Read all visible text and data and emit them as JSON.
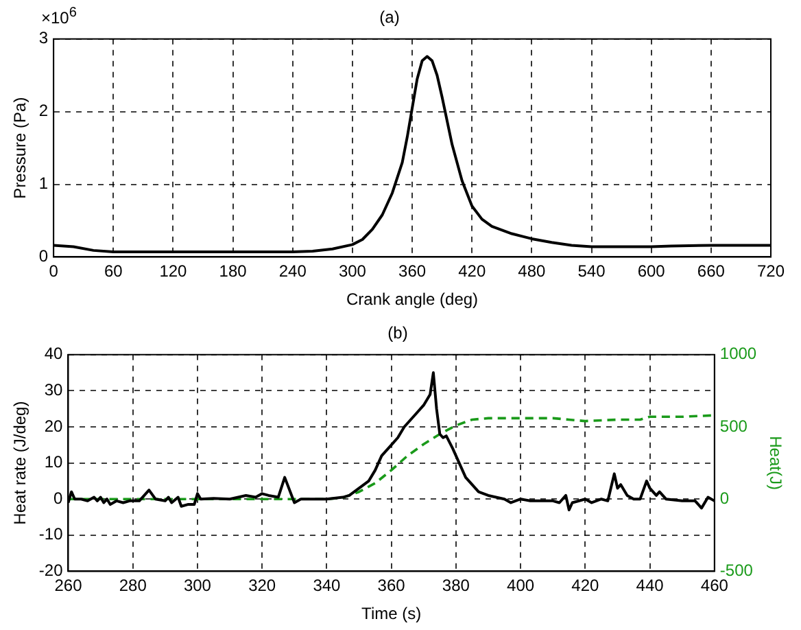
{
  "chart_data": [
    {
      "type": "line",
      "title": "(a)",
      "xlabel": "Crank angle (deg)",
      "ylabel": "Pressure (Pa)",
      "annotations": [
        "×10$^{6}$"
      ],
      "xlim": [
        0,
        720
      ],
      "xticks": [
        0,
        60,
        120,
        180,
        240,
        300,
        360,
        420,
        480,
        540,
        600,
        660,
        720
      ],
      "ylim": [
        0,
        3
      ],
      "yticks": [
        0,
        1,
        2,
        3
      ],
      "grid": true,
      "series": [
        {
          "color": "#000000",
          "x": [
            0,
            20,
            40,
            60,
            120,
            180,
            240,
            260,
            280,
            300,
            310,
            320,
            330,
            340,
            350,
            355,
            360,
            365,
            370,
            375,
            380,
            385,
            390,
            400,
            410,
            420,
            430,
            440,
            460,
            480,
            500,
            520,
            540,
            600,
            620,
            660,
            720
          ],
          "values": [
            0.16,
            0.14,
            0.09,
            0.07,
            0.07,
            0.07,
            0.07,
            0.08,
            0.11,
            0.17,
            0.24,
            0.38,
            0.58,
            0.88,
            1.3,
            1.65,
            2.05,
            2.45,
            2.7,
            2.76,
            2.7,
            2.5,
            2.2,
            1.55,
            1.05,
            0.7,
            0.52,
            0.42,
            0.32,
            0.25,
            0.2,
            0.16,
            0.14,
            0.14,
            0.15,
            0.16,
            0.16
          ]
        }
      ]
    },
    {
      "type": "line",
      "title": "(b)",
      "xlabel": "Time (s)",
      "ylabel": "Heat rate (J/deg)",
      "y2label": "Heat(J)",
      "xlim": [
        260,
        460
      ],
      "xticks": [
        260,
        280,
        300,
        320,
        340,
        360,
        380,
        400,
        420,
        440,
        460
      ],
      "ylim": [
        -20,
        40
      ],
      "yticks": [
        -20,
        -10,
        0,
        10,
        20,
        30,
        40
      ],
      "y2lim": [
        -500,
        1000
      ],
      "y2ticks": [
        -500,
        0,
        500,
        1000
      ],
      "grid": true,
      "series": [
        {
          "color": "#000000",
          "x": [
            260,
            261,
            262,
            264,
            266,
            268,
            269,
            270,
            271,
            272,
            273,
            275,
            277,
            279,
            282,
            285,
            287,
            290,
            291,
            292,
            294,
            295,
            297,
            299,
            300,
            301,
            305,
            310,
            315,
            318,
            320,
            322,
            325,
            327,
            330,
            332,
            340,
            345,
            347,
            350,
            353,
            355,
            357,
            360,
            362,
            364,
            366,
            368,
            370,
            372,
            373,
            374,
            375,
            376,
            377,
            379,
            381,
            383,
            385,
            387,
            390,
            395,
            397,
            400,
            403,
            406,
            410,
            412,
            414,
            415,
            416,
            420,
            422,
            425,
            427,
            429,
            430,
            431,
            433,
            435,
            437,
            439,
            440,
            442,
            443,
            445,
            450,
            454,
            456,
            458,
            460
          ],
          "values": [
            -1,
            2,
            0,
            0,
            -0.5,
            0.5,
            -0.5,
            0.5,
            -1,
            0,
            -1.5,
            -0.5,
            -1,
            -0.5,
            -0.5,
            2.5,
            0,
            -0.5,
            0.5,
            -1,
            0.5,
            -2,
            -1.5,
            -1.5,
            1.5,
            0,
            0.2,
            0,
            1,
            0.5,
            1.5,
            1,
            0.5,
            6,
            -1,
            0,
            0,
            0.5,
            1,
            3,
            5,
            8,
            12,
            15,
            17,
            20,
            22,
            24,
            26,
            29,
            35,
            25,
            18,
            17,
            17.5,
            14,
            10,
            6,
            4,
            2,
            1,
            0,
            -1,
            0,
            -0.5,
            -0.5,
            -0.5,
            -1,
            1,
            -3,
            -1,
            0,
            -1,
            0,
            -0.5,
            7,
            3,
            4,
            1,
            0,
            0,
            5,
            3,
            1,
            2,
            0,
            -0.5,
            -0.5,
            -2.5,
            0.5,
            -0.5
          ]
        },
        {
          "color": "#1a9a1a",
          "axis": "y2",
          "line_style": "dashed",
          "x": [
            260,
            340,
            345,
            350,
            355,
            360,
            365,
            370,
            375,
            380,
            385,
            390,
            400,
            410,
            415,
            420,
            430,
            437,
            440,
            450,
            460
          ],
          "values": [
            0,
            0,
            10,
            50,
            110,
            200,
            300,
            380,
            450,
            510,
            550,
            560,
            560,
            560,
            550,
            540,
            550,
            550,
            570,
            570,
            580
          ]
        }
      ]
    }
  ]
}
